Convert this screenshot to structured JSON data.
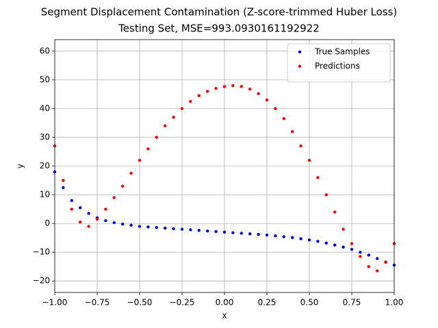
{
  "chart_data": {
    "type": "scatter",
    "title": "Segment Displacement Contamination (Z-score-trimmed Huber Loss)",
    "subtitle": "Testing Set, MSE=993.0930161192922",
    "x_label": "x",
    "y_label": "y",
    "x": [
      -1,
      -0.95,
      -0.9,
      -0.85,
      -0.8,
      -0.75,
      -0.7,
      -0.65,
      -0.6,
      -0.55,
      -0.5,
      -0.45,
      -0.4,
      -0.35,
      -0.3,
      -0.25,
      -0.2,
      -0.15,
      -0.1,
      -0.05,
      0,
      0.05,
      0.1,
      0.15,
      0.2,
      0.25,
      0.3,
      0.35,
      0.4,
      0.45,
      0.5,
      0.55,
      0.6,
      0.65,
      0.7,
      0.75,
      0.8,
      0.85,
      0.9,
      0.95,
      1
    ],
    "series": [
      {
        "name": "True Samples",
        "color": "#0000ff",
        "values": [
          18,
          12.5,
          8,
          5.5,
          3.5,
          2,
          1,
          0.3,
          -0.2,
          -0.6,
          -1,
          -1.2,
          -1.4,
          -1.6,
          -1.8,
          -2,
          -2.2,
          -2.4,
          -2.6,
          -2.8,
          -3,
          -3.2,
          -3.4,
          -3.6,
          -3.8,
          -4,
          -4.3,
          -4.6,
          -4.9,
          -5.3,
          -5.7,
          -6.2,
          -6.8,
          -7.5,
          -8.2,
          -9,
          -10,
          -11,
          -12.2,
          -13.4,
          -14.5
        ]
      },
      {
        "name": "Predictions",
        "color": "#ff0000",
        "values": [
          27,
          15,
          5,
          0.5,
          -1,
          1.5,
          5,
          9,
          13,
          17.5,
          22,
          26,
          30,
          34,
          37,
          40,
          42.5,
          44.5,
          46,
          47,
          47.7,
          48,
          47.7,
          46.8,
          45.2,
          43,
          40,
          36.5,
          32,
          27,
          22,
          16,
          10,
          4,
          -2,
          -7,
          -11.5,
          -15,
          -16.5,
          -13.5,
          -7
        ]
      }
    ],
    "xlim": [
      -1,
      1
    ],
    "ylim": [
      -24,
      64
    ],
    "xticks": [
      {
        "value": -1,
        "label": "−1.00"
      },
      {
        "value": -0.75,
        "label": "−0.75"
      },
      {
        "value": -0.5,
        "label": "−0.50"
      },
      {
        "value": -0.25,
        "label": "−0.25"
      },
      {
        "value": 0,
        "label": "0.00"
      },
      {
        "value": 0.25,
        "label": "0.25"
      },
      {
        "value": 0.5,
        "label": "0.50"
      },
      {
        "value": 0.75,
        "label": "0.75"
      },
      {
        "value": 1,
        "label": "1.00"
      }
    ],
    "yticks": [
      {
        "value": -20,
        "label": "−20"
      },
      {
        "value": -10,
        "label": "−10"
      },
      0,
      10,
      20,
      30,
      40,
      50,
      60
    ],
    "grid": true,
    "legend": "upper right"
  }
}
